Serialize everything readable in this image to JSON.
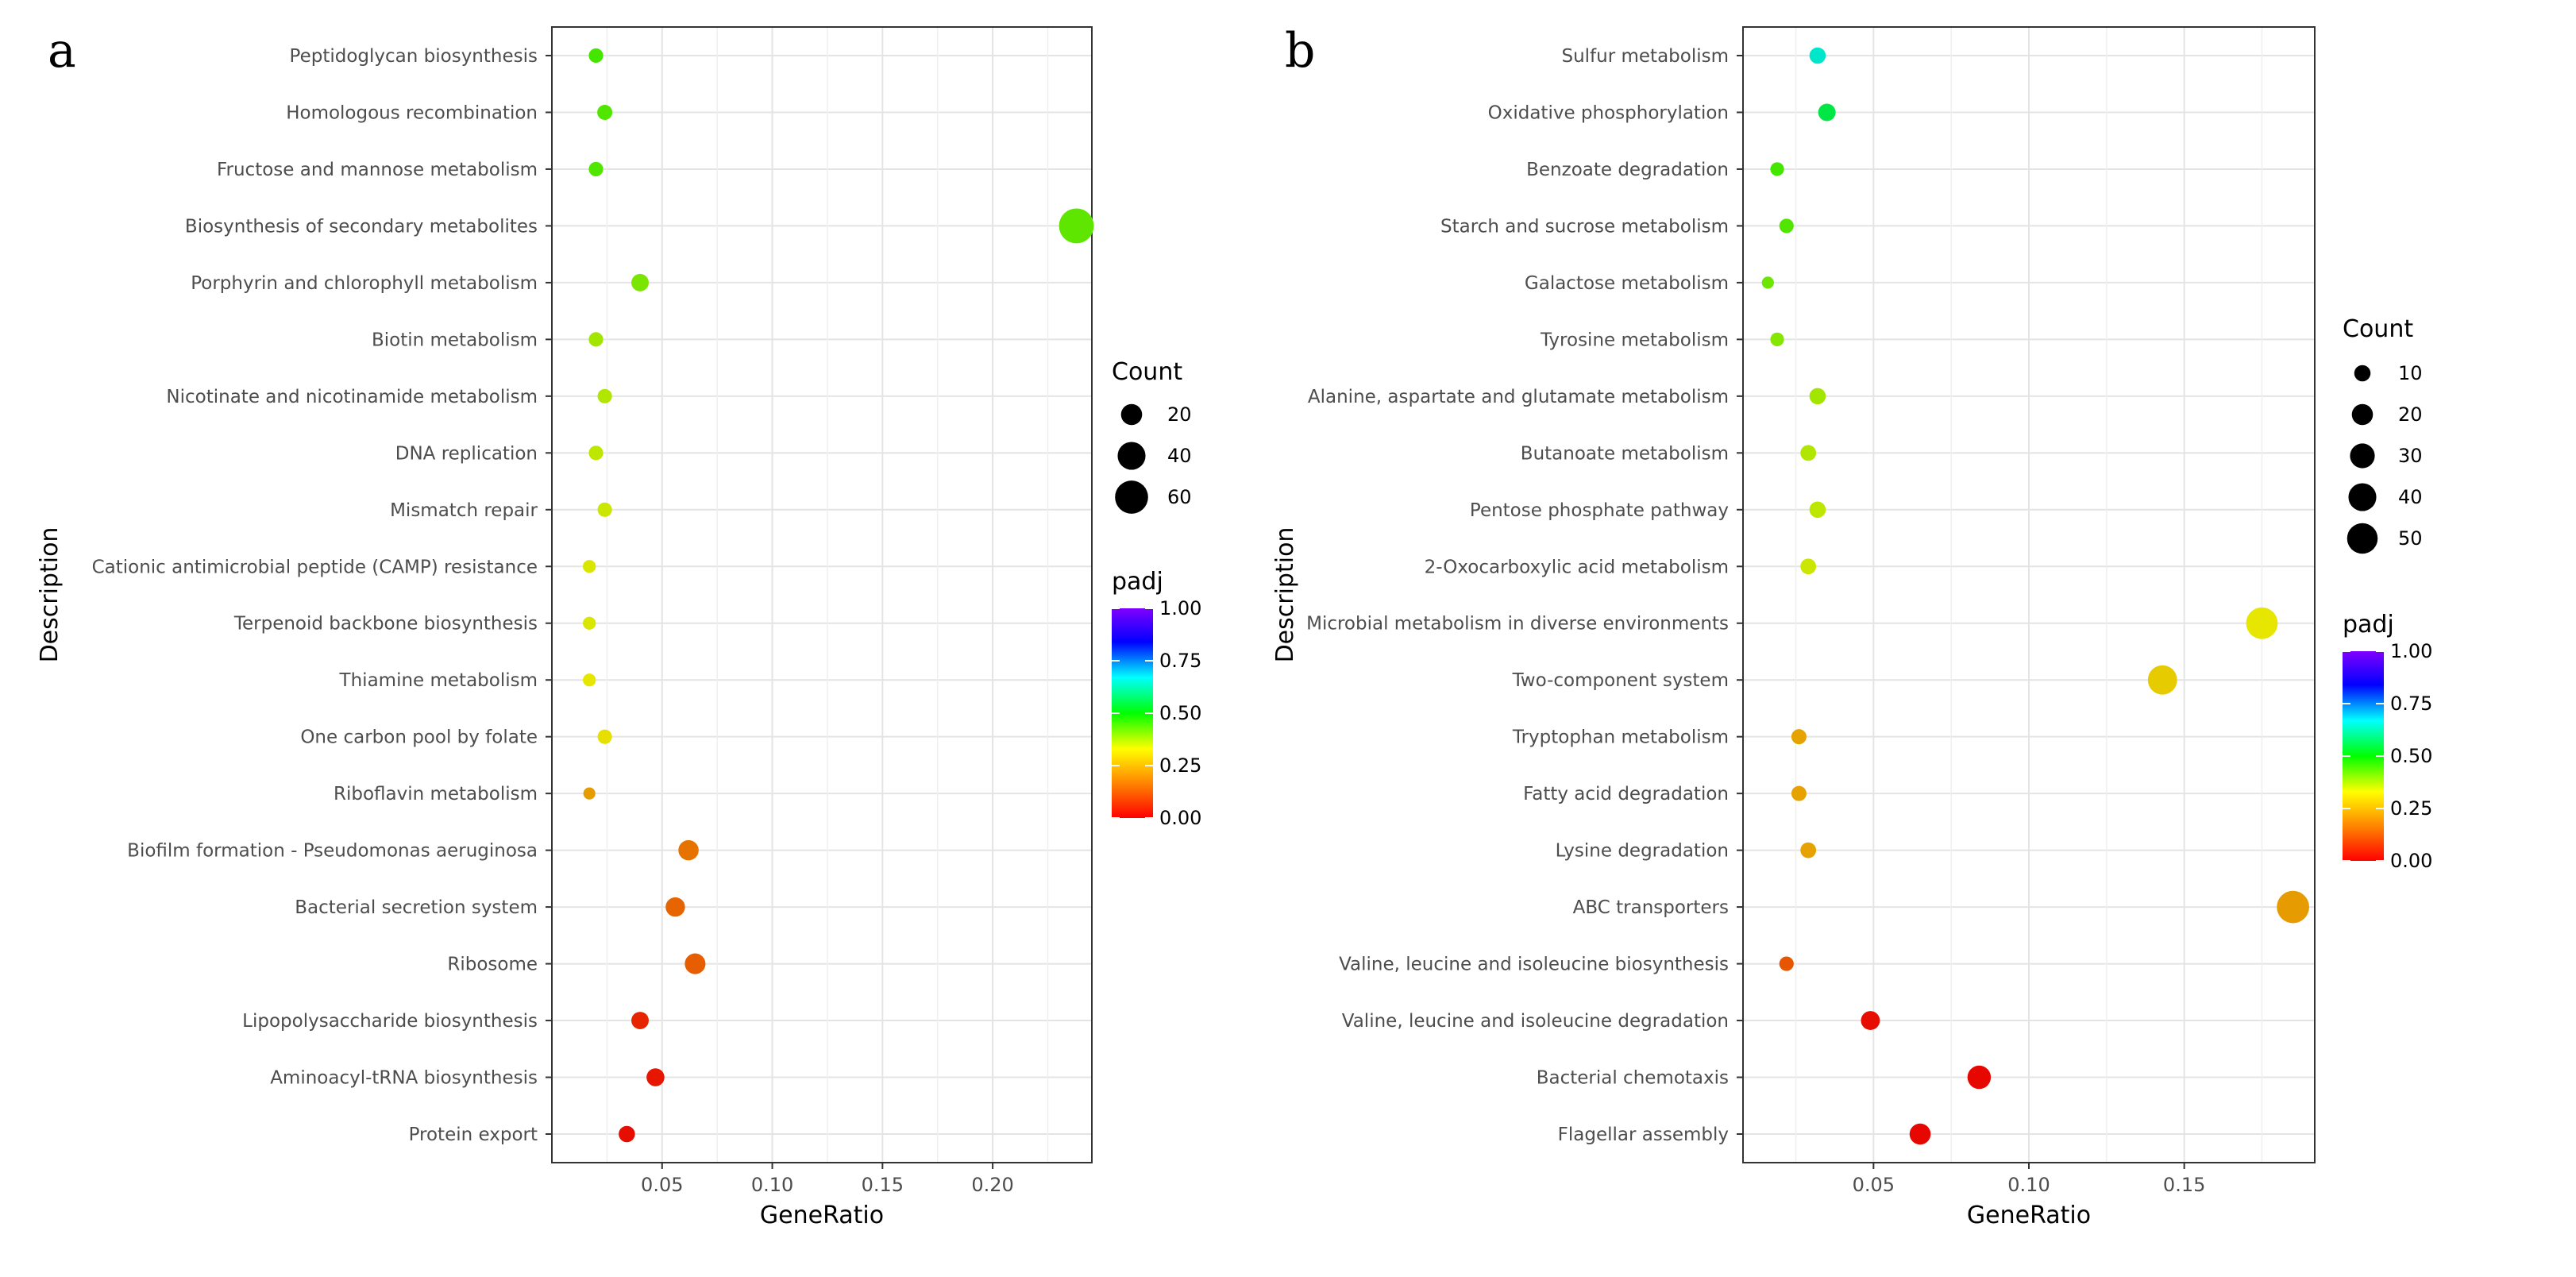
{
  "chart_data": [
    {
      "type": "scatter",
      "panel_label": "a",
      "xlabel": "GeneRatio",
      "ylabel": "Description",
      "xlim": [
        0.0,
        0.245
      ],
      "xticks": [
        0.05,
        0.1,
        0.15,
        0.2
      ],
      "xtick_labels": [
        "0.05",
        "0.10",
        "0.15",
        "0.20"
      ],
      "grid": true,
      "size_legend": {
        "title": "Count",
        "values": [
          20,
          40,
          60
        ],
        "labels": [
          "20",
          "40",
          "60"
        ]
      },
      "color_legend": {
        "title": "padj",
        "ticks": [
          1.0,
          0.75,
          0.5,
          0.25,
          0.0
        ],
        "labels": [
          "1.00",
          "0.75",
          "0.50",
          "0.25",
          "0.00"
        ]
      },
      "points": [
        {
          "label": "Peptidoglycan biosynthesis",
          "x": 0.02,
          "count": 7,
          "padj": 0.45
        },
        {
          "label": "Homologous recombination",
          "x": 0.024,
          "count": 8,
          "padj": 0.44
        },
        {
          "label": "Fructose and mannose metabolism",
          "x": 0.02,
          "count": 7,
          "padj": 0.44
        },
        {
          "label": "Biosynthesis of secondary metabolites",
          "x": 0.238,
          "count": 68,
          "padj": 0.43
        },
        {
          "label": "Porphyrin and chlorophyll metabolism",
          "x": 0.04,
          "count": 12,
          "padj": 0.41
        },
        {
          "label": "Biotin metabolism",
          "x": 0.02,
          "count": 7,
          "padj": 0.38
        },
        {
          "label": "Nicotinate and nicotinamide metabolism",
          "x": 0.024,
          "count": 7,
          "padj": 0.37
        },
        {
          "label": "DNA replication",
          "x": 0.02,
          "count": 7,
          "padj": 0.36
        },
        {
          "label": "Mismatch repair",
          "x": 0.024,
          "count": 7,
          "padj": 0.35
        },
        {
          "label": "Cationic antimicrobial peptide (CAMP) resistance",
          "x": 0.017,
          "count": 5,
          "padj": 0.34
        },
        {
          "label": "Terpenoid backbone biosynthesis",
          "x": 0.017,
          "count": 5,
          "padj": 0.34
        },
        {
          "label": "Thiamine metabolism",
          "x": 0.017,
          "count": 5,
          "padj": 0.33
        },
        {
          "label": "One carbon pool by folate",
          "x": 0.024,
          "count": 7,
          "padj": 0.32
        },
        {
          "label": "Riboflavin metabolism",
          "x": 0.017,
          "count": 4,
          "padj": 0.22
        },
        {
          "label": "Biofilm formation - Pseudomonas aeruginosa",
          "x": 0.062,
          "count": 18,
          "padj": 0.16
        },
        {
          "label": "Bacterial secretion system",
          "x": 0.056,
          "count": 16,
          "padj": 0.14
        },
        {
          "label": "Ribosome",
          "x": 0.065,
          "count": 19,
          "padj": 0.13
        },
        {
          "label": "Lipopolysaccharide biosynthesis",
          "x": 0.04,
          "count": 12,
          "padj": 0.05
        },
        {
          "label": "Aminoacyl-tRNA biosynthesis",
          "x": 0.047,
          "count": 13,
          "padj": 0.03
        },
        {
          "label": "Protein export",
          "x": 0.034,
          "count": 10,
          "padj": 0.02
        }
      ]
    },
    {
      "type": "scatter",
      "panel_label": "b",
      "xlabel": "GeneRatio",
      "ylabel": "Description",
      "xlim": [
        0.008,
        0.192
      ],
      "xticks": [
        0.05,
        0.1,
        0.15
      ],
      "xtick_labels": [
        "0.05",
        "0.10",
        "0.15"
      ],
      "grid": true,
      "size_legend": {
        "title": "Count",
        "values": [
          10,
          20,
          30,
          40,
          50
        ],
        "labels": [
          "10",
          "20",
          "30",
          "40",
          "50"
        ]
      },
      "color_legend": {
        "title": "padj",
        "ticks": [
          1.0,
          0.75,
          0.5,
          0.25,
          0.0
        ],
        "labels": [
          "1.00",
          "0.75",
          "0.50",
          "0.25",
          "0.00"
        ]
      },
      "points": [
        {
          "label": "Sulfur metabolism",
          "x": 0.032,
          "count": 10,
          "padj": 0.65
        },
        {
          "label": "Oxidative phosphorylation",
          "x": 0.035,
          "count": 12,
          "padj": 0.55
        },
        {
          "label": "Benzoate degradation",
          "x": 0.019,
          "count": 6,
          "padj": 0.45
        },
        {
          "label": "Starch and sucrose metabolism",
          "x": 0.022,
          "count": 7,
          "padj": 0.44
        },
        {
          "label": "Galactose metabolism",
          "x": 0.016,
          "count": 4,
          "padj": 0.42
        },
        {
          "label": "Tyrosine metabolism",
          "x": 0.019,
          "count": 6,
          "padj": 0.4
        },
        {
          "label": "Alanine, aspartate and glutamate metabolism",
          "x": 0.032,
          "count": 10,
          "padj": 0.38
        },
        {
          "label": "Butanoate metabolism",
          "x": 0.029,
          "count": 9,
          "padj": 0.37
        },
        {
          "label": "Pentose phosphate pathway",
          "x": 0.032,
          "count": 10,
          "padj": 0.36
        },
        {
          "label": "2-Oxocarboxylic acid metabolism",
          "x": 0.029,
          "count": 9,
          "padj": 0.35
        },
        {
          "label": "Microbial metabolism in diverse environments",
          "x": 0.175,
          "count": 54,
          "padj": 0.33
        },
        {
          "label": "Two-component system",
          "x": 0.143,
          "count": 45,
          "padj": 0.29
        },
        {
          "label": "Tryptophan metabolism",
          "x": 0.026,
          "count": 8,
          "padj": 0.23
        },
        {
          "label": "Fatty acid degradation",
          "x": 0.026,
          "count": 8,
          "padj": 0.23
        },
        {
          "label": "Lysine degradation",
          "x": 0.029,
          "count": 9,
          "padj": 0.23
        },
        {
          "label": "ABC transporters",
          "x": 0.185,
          "count": 57,
          "padj": 0.22
        },
        {
          "label": "Valine, leucine and isoleucine biosynthesis",
          "x": 0.022,
          "count": 7,
          "padj": 0.12
        },
        {
          "label": "Valine, leucine and isoleucine degradation",
          "x": 0.049,
          "count": 15,
          "padj": 0.02
        },
        {
          "label": "Bacterial chemotaxis",
          "x": 0.084,
          "count": 26,
          "padj": 0.01
        },
        {
          "label": "Flagellar assembly",
          "x": 0.065,
          "count": 20,
          "padj": 0.01
        }
      ]
    }
  ]
}
